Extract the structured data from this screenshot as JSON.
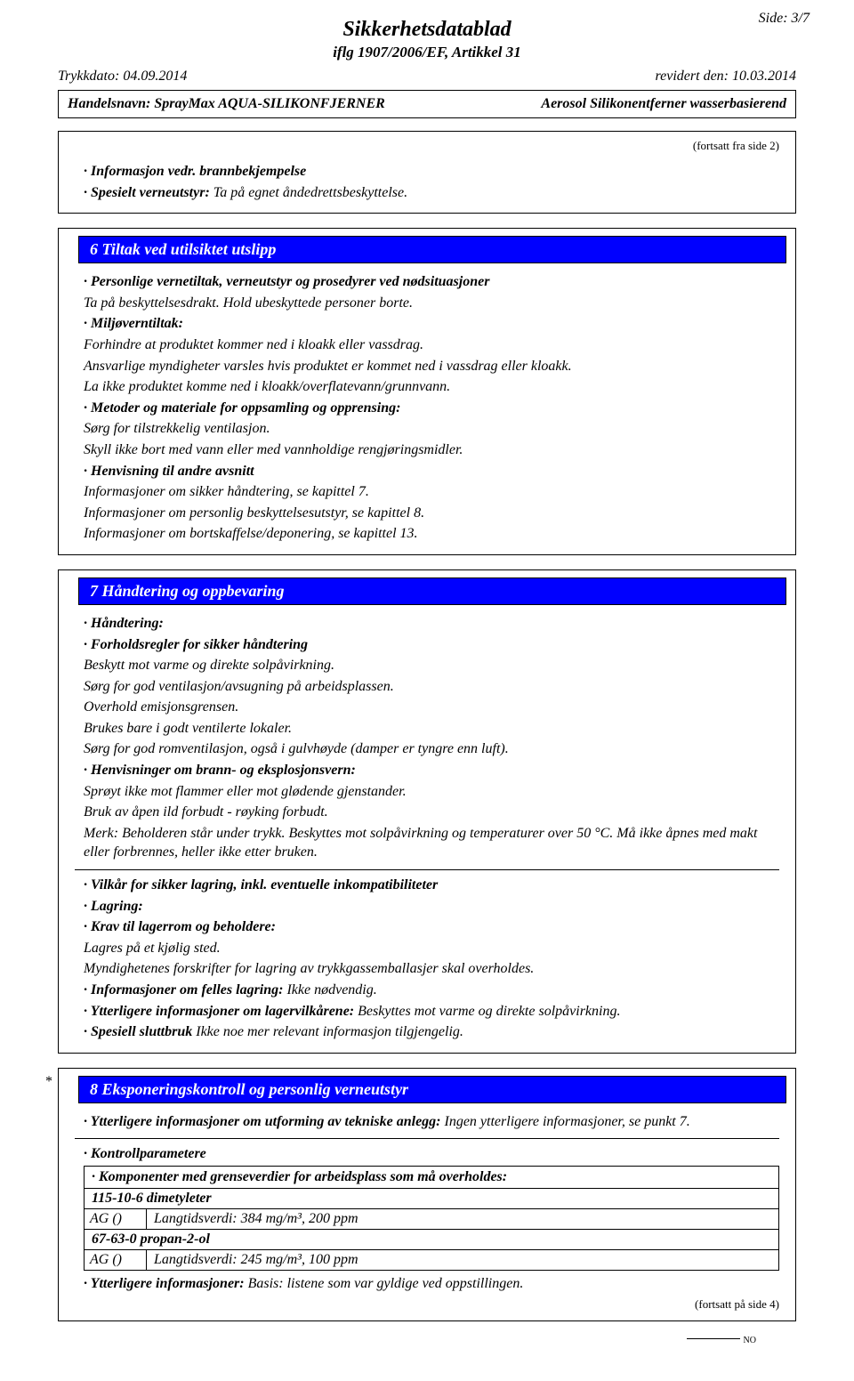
{
  "page_number": "Side: 3/7",
  "doc_title": "Sikkerhetsdatablad",
  "doc_subtitle": "iflg 1907/2006/EF, Artikkel 31",
  "print_date_label": "Trykkdato: 04.09.2014",
  "revised_label": "revidert den: 10.03.2014",
  "trade_name_label": "Handelsnavn:  SprayMax AQUA-SILIKONFJERNER",
  "trade_name_right": "Aerosol Silikonentferner wasserbasierend",
  "cont_from": "(fortsatt fra side 2)",
  "box1": {
    "l1a": "· Informasjon vedr. brannbekjempelse",
    "l1b": "· Spesielt verneutstyr:",
    "l1b_val": " Ta på egnet åndedrettsbeskyttelse."
  },
  "section6": {
    "title": "6 Tiltak ved utilsiktet utslipp",
    "p1a": "· Personlige vernetiltak, verneutstyr og prosedyrer ved nødsituasjoner",
    "p1b": "Ta på beskyttelsesdrakt. Hold ubeskyttede personer borte.",
    "p2a": "· Miljøverntiltak:",
    "p2b": "Forhindre at produktet kommer ned i kloakk eller vassdrag.",
    "p2c": "Ansvarlige myndigheter varsles hvis produktet er kommet ned i vassdrag eller kloakk.",
    "p2d": "La ikke produktet komme ned i kloakk/overflatevann/grunnvann.",
    "p3a": "· Metoder og materiale for oppsamling og opprensing:",
    "p3b": "Sørg for tilstrekkelig ventilasjon.",
    "p3c": "Skyll ikke bort med vann eller med vannholdige rengjøringsmidler.",
    "p4a": "· Henvisning til andre avsnitt",
    "p4b": "Informasjoner om sikker håndtering, se kapittel 7.",
    "p4c": "Informasjoner om personlig beskyttelsesutstyr, se kapittel 8.",
    "p4d": "Informasjoner om bortskaffelse/deponering, se kapittel 13."
  },
  "section7": {
    "title": "7 Håndtering og oppbevaring",
    "h1": "· Håndtering:",
    "h2": "· Forholdsregler for sikker håndtering",
    "h2a": "Beskytt mot varme og direkte solpåvirkning.",
    "h2b": "Sørg for god ventilasjon/avsugning på arbeidsplassen.",
    "h2c": "Overhold emisjonsgrensen.",
    "h2d": "Brukes bare i godt ventilerte lokaler.",
    "h2e": "Sørg for god romventilasjon, også i gulvhøyde (damper er tyngre enn luft).",
    "h3": "· Henvisninger om brann- og eksplosjonsvern:",
    "h3a": "Sprøyt ikke mot flammer eller mot glødende gjenstander.",
    "h3b": "Bruk av åpen ild forbudt - røyking forbudt.",
    "h3c": "Merk: Beholderen står under trykk. Beskyttes mot solpåvirkning og temperaturer over 50 °C. Må ikke åpnes med makt eller forbrennes, heller ikke etter bruken.",
    "s1": "· Vilkår for sikker lagring, inkl. eventuelle inkompatibiliteter",
    "s2": "· Lagring:",
    "s3": "· Krav til lagerrom og beholdere:",
    "s3a": "Lagres på et kjølig sted.",
    "s3b": "Myndighetenes forskrifter for lagring av trykkgassemballasjer skal overholdes.",
    "s4": "· Informasjoner om felles lagring:",
    "s4v": " Ikke nødvendig.",
    "s5": "· Ytterligere informasjoner om lagervilkårene:",
    "s5v": " Beskyttes mot varme og direkte solpåvirkning.",
    "s6": "· Spesiell sluttbruk",
    "s6v": " Ikke noe mer relevant informasjon tilgjengelig."
  },
  "section8": {
    "title": "8 Eksponeringskontroll og personlig verneutstyr",
    "p1": "· Ytterligere informasjoner om utforming av tekniske anlegg:",
    "p1v": " Ingen ytterligere informasjoner, se punkt 7.",
    "p2": "· Kontrollparametere",
    "tbl_head": "· Komponenter med grenseverdier for arbeidsplass som må overholdes:",
    "sub1": "115-10-6 dimetyleter",
    "r1a": "AG ()",
    "r1b": "Langtidsverdi: 384 mg/m³, 200 ppm",
    "sub2": "67-63-0 propan-2-ol",
    "r2a": "AG ()",
    "r2b": "Langtidsverdi: 245 mg/m³, 100 ppm",
    "p3": "· Ytterligere informasjoner:",
    "p3v": " Basis: listene som var gyldige ved oppstillingen."
  },
  "cont_to": "(fortsatt på side 4)",
  "lang": "NO"
}
